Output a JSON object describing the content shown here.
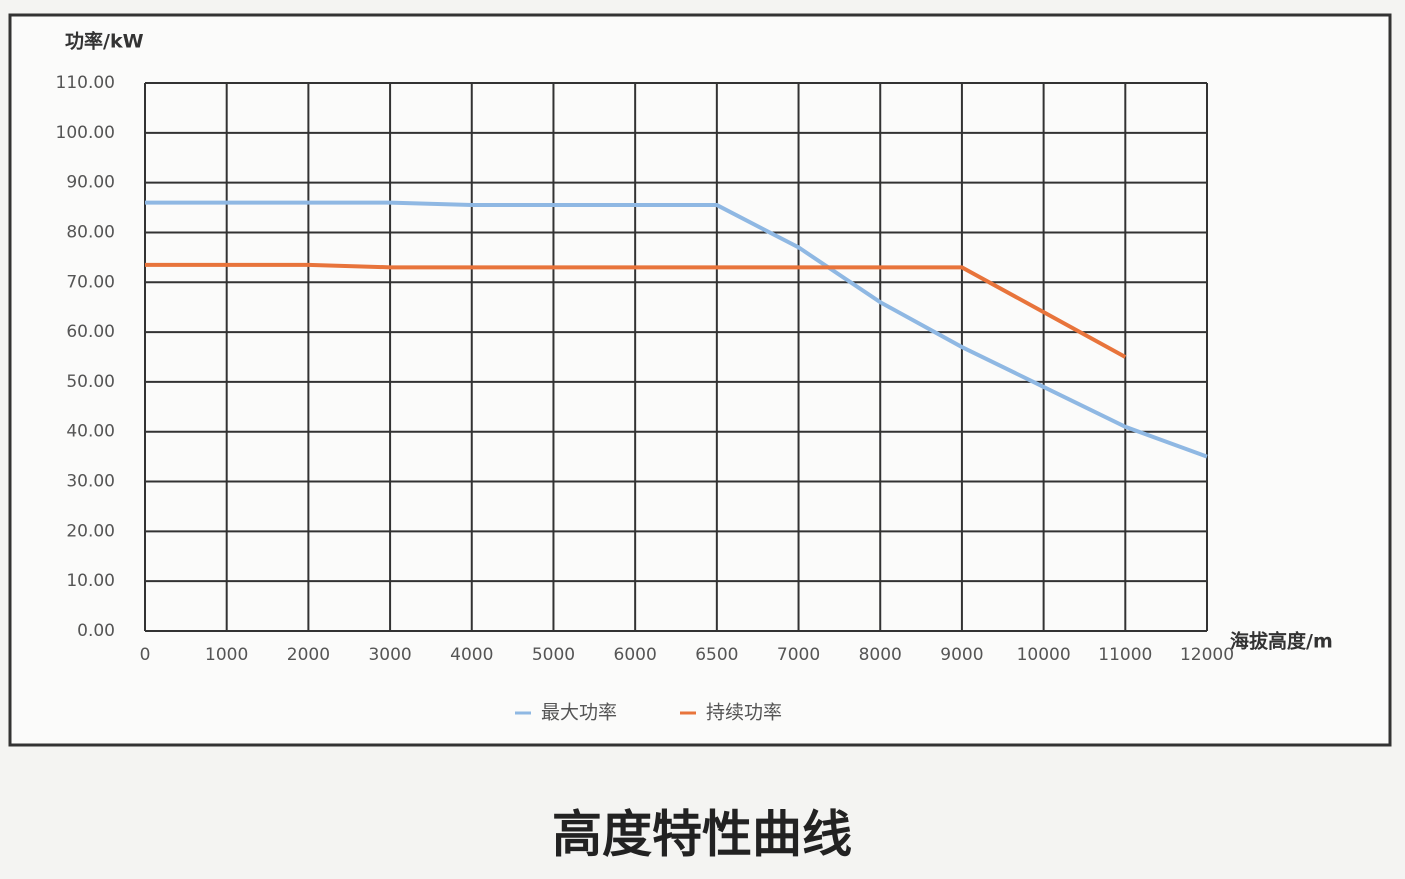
{
  "chart_data": {
    "type": "line",
    "title": "高度特性曲线",
    "y_label": "功率/kW",
    "x_label": "海拔高度/m",
    "categories": [
      "0",
      "1000",
      "2000",
      "3000",
      "4000",
      "5000",
      "6000",
      "6500",
      "7000",
      "8000",
      "9000",
      "10000",
      "11000",
      "12000"
    ],
    "series": [
      {
        "name": "最大功率",
        "color": "#8fb8e3",
        "values": [
          86,
          86,
          86,
          86,
          85.5,
          85.5,
          85.5,
          85.5,
          77,
          66,
          57,
          49,
          41,
          35
        ]
      },
      {
        "name": "持续功率",
        "color": "#e8743b",
        "values": [
          73.5,
          73.5,
          73.5,
          73,
          73,
          73,
          73,
          73,
          73,
          73,
          73,
          64,
          55,
          null
        ]
      }
    ],
    "ylim": [
      0,
      110
    ],
    "yticks": [
      {
        "value": 0,
        "label": "0.00"
      },
      {
        "value": 10,
        "label": "10.00"
      },
      {
        "value": 20,
        "label": "20.00"
      },
      {
        "value": 30,
        "label": "30.00"
      },
      {
        "value": 40,
        "label": "40.00"
      },
      {
        "value": 50,
        "label": "50.00"
      },
      {
        "value": 60,
        "label": "60.00"
      },
      {
        "value": 70,
        "label": "70.00"
      },
      {
        "value": 80,
        "label": "80.00"
      },
      {
        "value": 90,
        "label": "90.00"
      },
      {
        "value": 100,
        "label": "100.00"
      },
      {
        "value": 110,
        "label": "110.00"
      }
    ],
    "grid": true,
    "legend": "bottom"
  }
}
